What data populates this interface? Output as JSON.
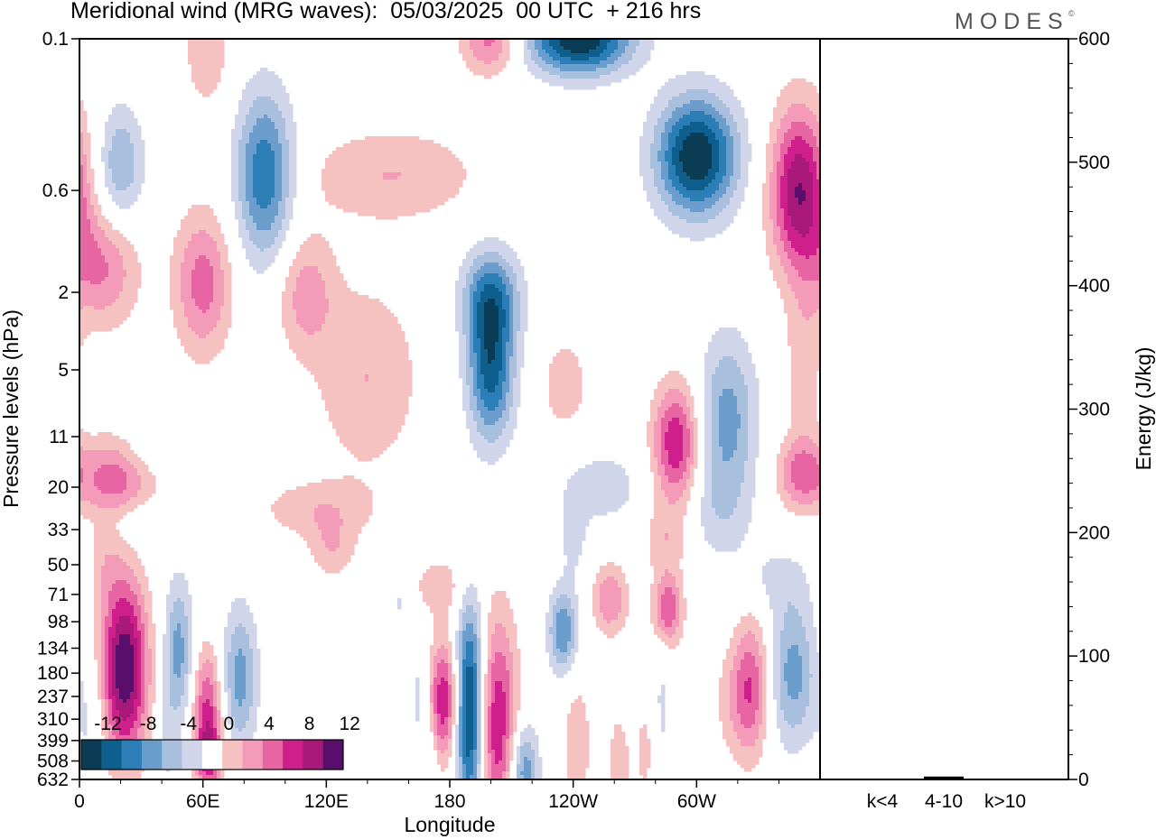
{
  "title": "Meridional wind (MRG waves):  05/03/2025  00 UTC  + 216 hrs",
  "brand": "MODES",
  "brand_mark": "©",
  "colors": {
    "neg": [
      "#0b3c56",
      "#0e5e8e",
      "#2b7fb6",
      "#6a9dcb",
      "#a8bfdd",
      "#d1d5e9"
    ],
    "pos": [
      "#f6c1c1",
      "#f39bb9",
      "#e865a4",
      "#cf1f8d",
      "#a81979",
      "#5a0e6b"
    ],
    "zero": "#ffffff"
  },
  "chart_data": [
    {
      "type": "heatmap",
      "title": "Meridional wind (MRG waves):  05/03/2025  00 UTC  + 216 hrs",
      "xlabel": "Longitude",
      "ylabel": "Pressure levels (hPa)",
      "x_ticks": [
        "0",
        "60E",
        "120E",
        "180",
        "120W",
        "60W"
      ],
      "x_tick_degrees": [
        0,
        60,
        120,
        180,
        240,
        300
      ],
      "xlim": [
        0,
        360
      ],
      "y_ticks": [
        "0.1",
        "0.6",
        "2",
        "5",
        "11",
        "20",
        "33",
        "50",
        "71",
        "98",
        "134",
        "180",
        "237",
        "310",
        "399",
        "508",
        "632"
      ],
      "y_scale": "log",
      "colorbar": {
        "labels": [
          "-12",
          "-8",
          "-4",
          "0",
          "4",
          "8",
          "12"
        ],
        "levels": [
          -14,
          -12,
          -10,
          -8,
          -6,
          -4,
          -2,
          2,
          4,
          6,
          8,
          10,
          12,
          14
        ]
      },
      "features": [
        {
          "lon": 22,
          "p": 170,
          "v": 14,
          "sl": 8,
          "sp": 0.75
        },
        {
          "lon": 48,
          "p": 140,
          "v": -7,
          "sl": 5,
          "sp": 0.6
        },
        {
          "lon": 12,
          "p": 48,
          "v": 2.5,
          "sl": 6,
          "sp": 0.4
        },
        {
          "lon": 62,
          "p": 240,
          "v": 7,
          "sl": 5,
          "sp": 0.45
        },
        {
          "lon": 63,
          "p": 480,
          "v": 9,
          "sl": 5,
          "sp": 0.35
        },
        {
          "lon": 78,
          "p": 190,
          "v": -7,
          "sl": 6,
          "sp": 0.6
        },
        {
          "lon": 6,
          "p": 330,
          "v": -2.5,
          "sl": 5,
          "sp": 0.5
        },
        {
          "lon": 42,
          "p": 420,
          "v": -2.5,
          "sl": 4,
          "sp": 0.4
        },
        {
          "lon": 165,
          "p": 230,
          "v": -2.5,
          "sl": 3,
          "sp": 0.6
        },
        {
          "lon": 177,
          "p": 250,
          "v": 10,
          "sl": 5,
          "sp": 0.5
        },
        {
          "lon": 190,
          "p": 280,
          "v": -14,
          "sl": 5,
          "sp": 0.9
        },
        {
          "lon": 203,
          "p": 330,
          "v": 10,
          "sl": 7,
          "sp": 0.9
        },
        {
          "lon": 216,
          "p": 570,
          "v": -8,
          "sl": 5,
          "sp": 0.4
        },
        {
          "lon": 235,
          "p": 110,
          "v": -8,
          "sl": 5,
          "sp": 0.35
        },
        {
          "lon": 258,
          "p": 75,
          "v": 6,
          "sl": 6,
          "sp": 0.3
        },
        {
          "lon": 286,
          "p": 85,
          "v": 8,
          "sl": 5,
          "sp": 0.3
        },
        {
          "lon": 242,
          "p": 420,
          "v": 3.5,
          "sl": 5,
          "sp": 0.6
        },
        {
          "lon": 275,
          "p": 450,
          "v": 2.5,
          "sl": 4,
          "sp": 0.5
        },
        {
          "lon": 327,
          "p": 200,
          "v": 6,
          "sl": 6,
          "sp": 0.6
        },
        {
          "lon": 347,
          "p": 180,
          "v": -7,
          "sl": 8,
          "sp": 0.6
        },
        {
          "lon": 338,
          "p": 60,
          "v": -2.5,
          "sl": 12,
          "sp": 0.3
        },
        {
          "lon": 156,
          "p": 75,
          "v": -2.5,
          "sl": 3,
          "sp": 0.3
        },
        {
          "lon": 283,
          "p": 270,
          "v": -2.5,
          "sl": 3,
          "sp": 0.6
        },
        {
          "lon": 123,
          "p": 42,
          "v": 3.5,
          "sl": 8,
          "sp": 0.25
        },
        {
          "lon": 175,
          "p": 65,
          "v": 3.5,
          "sl": 10,
          "sp": 0.25
        },
        {
          "lon": 62,
          "p": 0.1,
          "v": 4,
          "sl": 8,
          "sp": 0.6
        },
        {
          "lon": 20,
          "p": 0.45,
          "v": -6,
          "sl": 8,
          "sp": 0.5
        },
        {
          "lon": 90,
          "p": 0.5,
          "v": -10,
          "sl": 10,
          "sp": 0.7
        },
        {
          "lon": 12,
          "p": 1.5,
          "v": 6,
          "sl": 12,
          "sp": 0.5
        },
        {
          "lon": 60,
          "p": 1.8,
          "v": 7,
          "sl": 10,
          "sp": 0.6
        },
        {
          "lon": 110,
          "p": 2.0,
          "v": 5,
          "sl": 10,
          "sp": 0.5
        },
        {
          "lon": 152,
          "p": 0.5,
          "v": 4,
          "sl": 30,
          "sp": 0.4
        },
        {
          "lon": 200,
          "p": 0.1,
          "v": 7,
          "sl": 10,
          "sp": 0.3
        },
        {
          "lon": 243,
          "p": 0.1,
          "v": -14,
          "sl": 18,
          "sp": 0.3
        },
        {
          "lon": 300,
          "p": 0.4,
          "v": -14,
          "sl": 14,
          "sp": 0.5
        },
        {
          "lon": 350,
          "p": 0.6,
          "v": 12,
          "sl": 10,
          "sp": 0.7
        },
        {
          "lon": 200,
          "p": 2.1,
          "v": -8,
          "sl": 10,
          "sp": 0.4
        },
        {
          "lon": 200,
          "p": 5,
          "v": -11,
          "sl": 8,
          "sp": 0.6
        },
        {
          "lon": 140,
          "p": 5.5,
          "v": 4,
          "sl": 18,
          "sp": 0.8
        },
        {
          "lon": 236,
          "p": 6,
          "v": 3.5,
          "sl": 8,
          "sp": 0.4
        },
        {
          "lon": 290,
          "p": 12,
          "v": 10,
          "sl": 8,
          "sp": 0.5
        },
        {
          "lon": 315,
          "p": 9,
          "v": -7,
          "sl": 10,
          "sp": 0.7
        },
        {
          "lon": 352,
          "p": 5,
          "v": 3.5,
          "sl": 6,
          "sp": 0.6
        },
        {
          "lon": 350,
          "p": 17,
          "v": 6,
          "sl": 8,
          "sp": 0.3
        },
        {
          "lon": 18,
          "p": 18,
          "v": 7,
          "sl": 15,
          "sp": 0.35
        },
        {
          "lon": 115,
          "p": 26,
          "v": 3.5,
          "sl": 20,
          "sp": 0.25
        },
        {
          "lon": 255,
          "p": 20,
          "v": -3,
          "sl": 15,
          "sp": 0.35
        },
        {
          "lon": 32,
          "p": 13,
          "v": -2.5,
          "sl": 8,
          "sp": 0.3
        },
        {
          "lon": 30,
          "p": 30,
          "v": -2.5,
          "sl": 15,
          "sp": 0.2
        },
        {
          "lon": 285,
          "p": 37,
          "v": 3.5,
          "sl": 8,
          "sp": 0.3
        },
        {
          "lon": 240,
          "p": 36,
          "v": -2.5,
          "sl": 5,
          "sp": 0.4
        },
        {
          "lon": 310,
          "p": 28,
          "v": -2.5,
          "sl": 12,
          "sp": 0.4
        },
        {
          "lon": 320,
          "p": 250,
          "v": 3.5,
          "sl": 8,
          "sp": 0.5
        },
        {
          "lon": 170,
          "p": 520,
          "v": -2.5,
          "sl": 3,
          "sp": 0.5
        },
        {
          "lon": 262,
          "p": 560,
          "v": 3.5,
          "sl": 4,
          "sp": 0.5
        }
      ]
    },
    {
      "type": "bar",
      "categories": [
        "k<4",
        "4-10",
        "k>10"
      ],
      "values": [
        0,
        2,
        0
      ],
      "ylabel": "Energy (J/kg)",
      "ylim": [
        0,
        600
      ],
      "y_ticks": [
        "0",
        "100",
        "200",
        "300",
        "400",
        "500",
        "600"
      ]
    }
  ]
}
